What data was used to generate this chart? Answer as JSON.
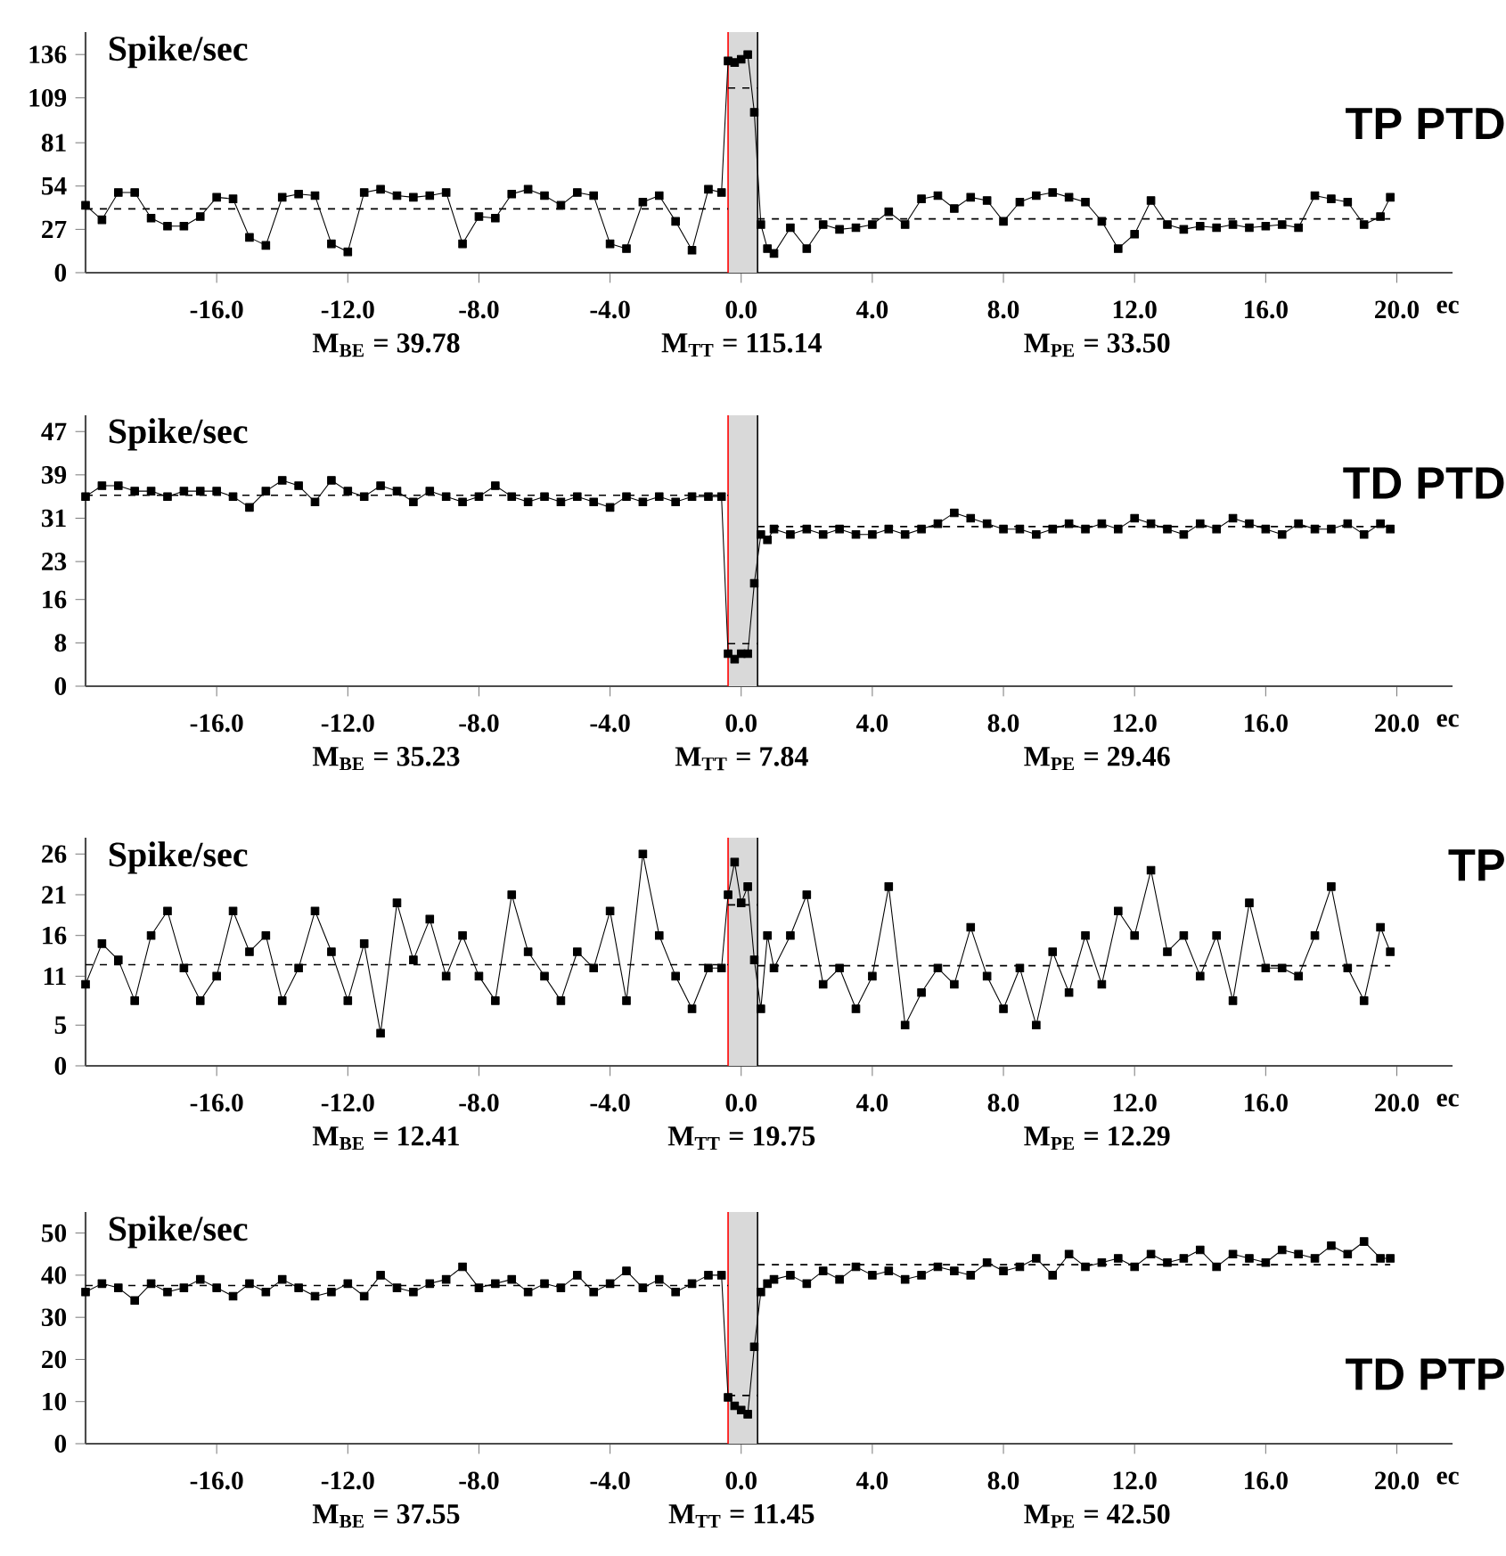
{
  "chart_data": [
    {
      "type": "line",
      "title": "TP PTD",
      "ylabel": "Spike/sec",
      "xlabel": "ec",
      "marker": "square",
      "line_style": "solid",
      "annotations": [
        "M$_{BE}$ = 39.78",
        "M$_{TT}$ = 115.14",
        "M$_{PE}$ = 33.50"
      ],
      "x": [
        -20,
        -19.5,
        -19,
        -18.5,
        -18,
        -17.5,
        -17,
        -16.5,
        -16,
        -15.5,
        -15,
        -14.5,
        -14,
        -13.5,
        -13,
        -12.5,
        -12,
        -11.5,
        -11,
        -10.5,
        -10,
        -9.5,
        -9,
        -8.5,
        -8,
        -7.5,
        -7,
        -6.5,
        -6,
        -5.5,
        -5,
        -4.5,
        -4,
        -3.5,
        -3,
        -2.5,
        -2,
        -1.5,
        -1,
        -0.6,
        -0.4,
        -0.2,
        0,
        0.2,
        0.4,
        0.6,
        0.8,
        1,
        1.5,
        2,
        2.5,
        3,
        3.5,
        4,
        4.5,
        5,
        5.5,
        6,
        6.5,
        7,
        7.5,
        8,
        8.5,
        9,
        9.5,
        10,
        10.5,
        11,
        11.5,
        12,
        12.5,
        13,
        13.5,
        14,
        14.5,
        15,
        15.5,
        16,
        16.5,
        17,
        17.5,
        18,
        18.5,
        19,
        19.5,
        19.8
      ],
      "series": [
        {
          "color": "#000000",
          "values": [
            42,
            33,
            50,
            50,
            34,
            29,
            29,
            35,
            47,
            46,
            22,
            17,
            47,
            49,
            48,
            18,
            13,
            50,
            52,
            48,
            47,
            48,
            50,
            18,
            35,
            34,
            49,
            52,
            48,
            42,
            50,
            48,
            18,
            15,
            44,
            48,
            32,
            14,
            52,
            50,
            132,
            131,
            133,
            136,
            100,
            30,
            15,
            12,
            28,
            15,
            30,
            27,
            28,
            30,
            38,
            30,
            46,
            48,
            40,
            47,
            45,
            32,
            44,
            48,
            50,
            47,
            44,
            32,
            15,
            24,
            45,
            30,
            27,
            29,
            28,
            30,
            28,
            29,
            30,
            28,
            48,
            46,
            44,
            30,
            35,
            47
          ]
        },
        {
          "type": "line",
          "color": "#000000",
          "line_style": "dashed",
          "marker": "none",
          "x": [
            -20,
            -0.4
          ],
          "values": [
            39.78,
            39.78
          ]
        },
        {
          "type": "line",
          "color": "#000000",
          "line_style": "dashed",
          "marker": "none",
          "x": [
            -0.4,
            0.5
          ],
          "values": [
            115.14,
            115.14
          ]
        },
        {
          "type": "line",
          "color": "#000000",
          "line_style": "dashed",
          "marker": "none",
          "x": [
            0.5,
            19.8
          ],
          "values": [
            33.5,
            33.5
          ]
        }
      ],
      "xlim": [
        -20,
        21.7
      ],
      "ylim": [
        0,
        150
      ],
      "xticks": [
        {
          "value": -16,
          "label": "-16.0"
        },
        {
          "value": -12,
          "label": "-12.0"
        },
        {
          "value": -8,
          "label": "-8.0"
        },
        {
          "value": -4,
          "label": "-4.0"
        },
        {
          "value": 0,
          "label": "0.0"
        },
        {
          "value": 4,
          "label": "4.0"
        },
        {
          "value": 8,
          "label": "8.0"
        },
        {
          "value": 12,
          "label": "12.0"
        },
        {
          "value": 16,
          "label": "16.0"
        },
        {
          "value": 20,
          "label": "20.0"
        }
      ],
      "yticks": [
        0,
        27,
        54,
        81,
        109,
        136
      ],
      "bands": [
        {
          "axis": "x",
          "from": -0.4,
          "to": 0.5,
          "color": "#d9d9d9"
        }
      ],
      "ref_lines": [
        {
          "axis": "x",
          "value": -0.4,
          "color": "#ff0000"
        },
        {
          "axis": "x",
          "value": 0.5,
          "color": "#000000"
        }
      ]
    },
    {
      "type": "line",
      "title": "TD PTD",
      "ylabel": "Spike/sec",
      "xlabel": "ec",
      "marker": "square",
      "line_style": "solid",
      "annotations": [
        "M$_{BE}$ = 35.23",
        "M$_{TT}$ = 7.84",
        "M$_{PE}$ = 29.46"
      ],
      "x": [
        -20,
        -19.5,
        -19,
        -18.5,
        -18,
        -17.5,
        -17,
        -16.5,
        -16,
        -15.5,
        -15,
        -14.5,
        -14,
        -13.5,
        -13,
        -12.5,
        -12,
        -11.5,
        -11,
        -10.5,
        -10,
        -9.5,
        -9,
        -8.5,
        -8,
        -7.5,
        -7,
        -6.5,
        -6,
        -5.5,
        -5,
        -4.5,
        -4,
        -3.5,
        -3,
        -2.5,
        -2,
        -1.5,
        -1,
        -0.6,
        -0.4,
        -0.2,
        0,
        0.2,
        0.4,
        0.6,
        0.8,
        1,
        1.5,
        2,
        2.5,
        3,
        3.5,
        4,
        4.5,
        5,
        5.5,
        6,
        6.5,
        7,
        7.5,
        8,
        8.5,
        9,
        9.5,
        10,
        10.5,
        11,
        11.5,
        12,
        12.5,
        13,
        13.5,
        14,
        14.5,
        15,
        15.5,
        16,
        16.5,
        17,
        17.5,
        18,
        18.5,
        19,
        19.5,
        19.8
      ],
      "series": [
        {
          "color": "#000000",
          "values": [
            35,
            37,
            37,
            36,
            36,
            35,
            36,
            36,
            36,
            35,
            33,
            36,
            38,
            37,
            34,
            38,
            36,
            35,
            37,
            36,
            34,
            36,
            35,
            34,
            35,
            37,
            35,
            34,
            35,
            34,
            35,
            34,
            33,
            35,
            34,
            35,
            34,
            35,
            35,
            35,
            6,
            5,
            6,
            6,
            19,
            28,
            27,
            29,
            28,
            29,
            28,
            29,
            28,
            28,
            29,
            28,
            29,
            30,
            32,
            31,
            30,
            29,
            29,
            28,
            29,
            30,
            29,
            30,
            29,
            31,
            30,
            29,
            28,
            30,
            29,
            31,
            30,
            29,
            28,
            30,
            29,
            29,
            30,
            28,
            30,
            29
          ]
        },
        {
          "type": "line",
          "color": "#000000",
          "line_style": "dashed",
          "marker": "none",
          "x": [
            -20,
            -0.4
          ],
          "values": [
            35.23,
            35.23
          ]
        },
        {
          "type": "line",
          "color": "#000000",
          "line_style": "dashed",
          "marker": "none",
          "x": [
            -0.4,
            0.5
          ],
          "values": [
            7.84,
            7.84
          ]
        },
        {
          "type": "line",
          "color": "#000000",
          "line_style": "dashed",
          "marker": "none",
          "x": [
            0.5,
            19.8
          ],
          "values": [
            29.46,
            29.46
          ]
        }
      ],
      "xlim": [
        -20,
        21.7
      ],
      "ylim": [
        0,
        50
      ],
      "xticks": [
        {
          "value": -16,
          "label": "-16.0"
        },
        {
          "value": -12,
          "label": "-12.0"
        },
        {
          "value": -8,
          "label": "-8.0"
        },
        {
          "value": -4,
          "label": "-4.0"
        },
        {
          "value": 0,
          "label": "0.0"
        },
        {
          "value": 4,
          "label": "4.0"
        },
        {
          "value": 8,
          "label": "8.0"
        },
        {
          "value": 12,
          "label": "12.0"
        },
        {
          "value": 16,
          "label": "16.0"
        },
        {
          "value": 20,
          "label": "20.0"
        }
      ],
      "yticks": [
        0,
        8,
        16,
        23,
        31,
        39,
        47
      ],
      "bands": [
        {
          "axis": "x",
          "from": -0.4,
          "to": 0.5,
          "color": "#d9d9d9"
        }
      ],
      "ref_lines": [
        {
          "axis": "x",
          "value": -0.4,
          "color": "#ff0000"
        },
        {
          "axis": "x",
          "value": 0.5,
          "color": "#000000"
        }
      ]
    },
    {
      "type": "line",
      "title": "TP",
      "ylabel": "Spike/sec",
      "xlabel": "ec",
      "marker": "square",
      "line_style": "solid",
      "annotations": [
        "M$_{BE}$ = 12.41",
        "M$_{TT}$ = 19.75",
        "M$_{PE}$ = 12.29"
      ],
      "x": [
        -20,
        -19.5,
        -19,
        -18.5,
        -18,
        -17.5,
        -17,
        -16.5,
        -16,
        -15.5,
        -15,
        -14.5,
        -14,
        -13.5,
        -13,
        -12.5,
        -12,
        -11.5,
        -11,
        -10.5,
        -10,
        -9.5,
        -9,
        -8.5,
        -8,
        -7.5,
        -7,
        -6.5,
        -6,
        -5.5,
        -5,
        -4.5,
        -4,
        -3.5,
        -3,
        -2.5,
        -2,
        -1.5,
        -1,
        -0.6,
        -0.4,
        -0.2,
        0,
        0.2,
        0.4,
        0.6,
        0.8,
        1,
        1.5,
        2,
        2.5,
        3,
        3.5,
        4,
        4.5,
        5,
        5.5,
        6,
        6.5,
        7,
        7.5,
        8,
        8.5,
        9,
        9.5,
        10,
        10.5,
        11,
        11.5,
        12,
        12.5,
        13,
        13.5,
        14,
        14.5,
        15,
        15.5,
        16,
        16.5,
        17,
        17.5,
        18,
        18.5,
        19,
        19.5,
        19.8
      ],
      "series": [
        {
          "color": "#000000",
          "values": [
            10,
            15,
            13,
            8,
            16,
            19,
            12,
            8,
            11,
            19,
            14,
            16,
            8,
            12,
            19,
            14,
            8,
            15,
            4,
            20,
            13,
            18,
            11,
            16,
            11,
            8,
            21,
            14,
            11,
            8,
            14,
            12,
            19,
            8,
            26,
            16,
            11,
            7,
            12,
            12,
            21,
            25,
            20,
            22,
            13,
            7,
            16,
            12,
            16,
            21,
            10,
            12,
            7,
            11,
            22,
            5,
            9,
            12,
            10,
            17,
            11,
            7,
            12,
            5,
            14,
            9,
            16,
            10,
            19,
            16,
            24,
            14,
            16,
            11,
            16,
            8,
            20,
            12,
            12,
            11,
            16,
            22,
            12,
            8,
            17,
            14
          ]
        },
        {
          "type": "line",
          "color": "#000000",
          "line_style": "dashed",
          "marker": "none",
          "x": [
            -20,
            -0.4
          ],
          "values": [
            12.41,
            12.41
          ]
        },
        {
          "type": "line",
          "color": "#000000",
          "line_style": "dashed",
          "marker": "none",
          "x": [
            -0.4,
            0.5
          ],
          "values": [
            19.75,
            19.75
          ]
        },
        {
          "type": "line",
          "color": "#000000",
          "line_style": "dashed",
          "marker": "none",
          "x": [
            0.5,
            19.8
          ],
          "values": [
            12.29,
            12.29
          ]
        }
      ],
      "xlim": [
        -20,
        21.7
      ],
      "ylim": [
        0,
        28
      ],
      "xticks": [
        {
          "value": -16,
          "label": "-16.0"
        },
        {
          "value": -12,
          "label": "-12.0"
        },
        {
          "value": -8,
          "label": "-8.0"
        },
        {
          "value": -4,
          "label": "-4.0"
        },
        {
          "value": 0,
          "label": "0.0"
        },
        {
          "value": 4,
          "label": "4.0"
        },
        {
          "value": 8,
          "label": "8.0"
        },
        {
          "value": 12,
          "label": "12.0"
        },
        {
          "value": 16,
          "label": "16.0"
        },
        {
          "value": 20,
          "label": "20.0"
        }
      ],
      "yticks": [
        0,
        5,
        11,
        16,
        21,
        26
      ],
      "bands": [
        {
          "axis": "x",
          "from": -0.4,
          "to": 0.5,
          "color": "#d9d9d9"
        }
      ],
      "ref_lines": [
        {
          "axis": "x",
          "value": -0.4,
          "color": "#ff0000"
        },
        {
          "axis": "x",
          "value": 0.5,
          "color": "#000000"
        }
      ]
    },
    {
      "type": "line",
      "title": "TD PTP",
      "ylabel": "Spike/sec",
      "xlabel": "ec",
      "marker": "square",
      "line_style": "solid",
      "annotations": [
        "M$_{BE}$ = 37.55",
        "M$_{TT}$ = 11.45",
        "M$_{PE}$ = 42.50"
      ],
      "x": [
        -20,
        -19.5,
        -19,
        -18.5,
        -18,
        -17.5,
        -17,
        -16.5,
        -16,
        -15.5,
        -15,
        -14.5,
        -14,
        -13.5,
        -13,
        -12.5,
        -12,
        -11.5,
        -11,
        -10.5,
        -10,
        -9.5,
        -9,
        -8.5,
        -8,
        -7.5,
        -7,
        -6.5,
        -6,
        -5.5,
        -5,
        -4.5,
        -4,
        -3.5,
        -3,
        -2.5,
        -2,
        -1.5,
        -1,
        -0.6,
        -0.4,
        -0.2,
        0,
        0.2,
        0.4,
        0.6,
        0.8,
        1,
        1.5,
        2,
        2.5,
        3,
        3.5,
        4,
        4.5,
        5,
        5.5,
        6,
        6.5,
        7,
        7.5,
        8,
        8.5,
        9,
        9.5,
        10,
        10.5,
        11,
        11.5,
        12,
        12.5,
        13,
        13.5,
        14,
        14.5,
        15,
        15.5,
        16,
        16.5,
        17,
        17.5,
        18,
        18.5,
        19,
        19.5,
        19.8
      ],
      "series": [
        {
          "color": "#000000",
          "values": [
            36,
            38,
            37,
            34,
            38,
            36,
            37,
            39,
            37,
            35,
            38,
            36,
            39,
            37,
            35,
            36,
            38,
            35,
            40,
            37,
            36,
            38,
            39,
            42,
            37,
            38,
            39,
            36,
            38,
            37,
            40,
            36,
            38,
            41,
            37,
            39,
            36,
            38,
            40,
            40,
            11,
            9,
            8,
            7,
            23,
            36,
            38,
            39,
            40,
            38,
            41,
            39,
            42,
            40,
            41,
            39,
            40,
            42,
            41,
            40,
            43,
            41,
            42,
            44,
            40,
            45,
            42,
            43,
            44,
            42,
            45,
            43,
            44,
            46,
            42,
            45,
            44,
            43,
            46,
            45,
            44,
            47,
            45,
            48,
            44,
            44
          ]
        },
        {
          "type": "line",
          "color": "#000000",
          "line_style": "dashed",
          "marker": "none",
          "x": [
            -20,
            -0.4
          ],
          "values": [
            37.55,
            37.55
          ]
        },
        {
          "type": "line",
          "color": "#000000",
          "line_style": "dashed",
          "marker": "none",
          "x": [
            -0.4,
            0.5
          ],
          "values": [
            11.45,
            11.45
          ]
        },
        {
          "type": "line",
          "color": "#000000",
          "line_style": "dashed",
          "marker": "none",
          "x": [
            0.5,
            19.8
          ],
          "values": [
            42.5,
            42.5
          ]
        }
      ],
      "xlim": [
        -20,
        21.7
      ],
      "ylim": [
        0,
        55
      ],
      "xticks": [
        {
          "value": -16,
          "label": "-16.0"
        },
        {
          "value": -12,
          "label": "-12.0"
        },
        {
          "value": -8,
          "label": "-8.0"
        },
        {
          "value": -4,
          "label": "-4.0"
        },
        {
          "value": 0,
          "label": "0.0"
        },
        {
          "value": 4,
          "label": "4.0"
        },
        {
          "value": 8,
          "label": "8.0"
        },
        {
          "value": 12,
          "label": "12.0"
        },
        {
          "value": 16,
          "label": "16.0"
        },
        {
          "value": 20,
          "label": "20.0"
        }
      ],
      "yticks": [
        0,
        10,
        20,
        30,
        40,
        50
      ],
      "bands": [
        {
          "axis": "x",
          "from": -0.4,
          "to": 0.5,
          "color": "#d9d9d9"
        }
      ],
      "ref_lines": [
        {
          "axis": "x",
          "value": -0.4,
          "color": "#ff0000"
        },
        {
          "axis": "x",
          "value": 0.5,
          "color": "#000000"
        }
      ]
    }
  ]
}
